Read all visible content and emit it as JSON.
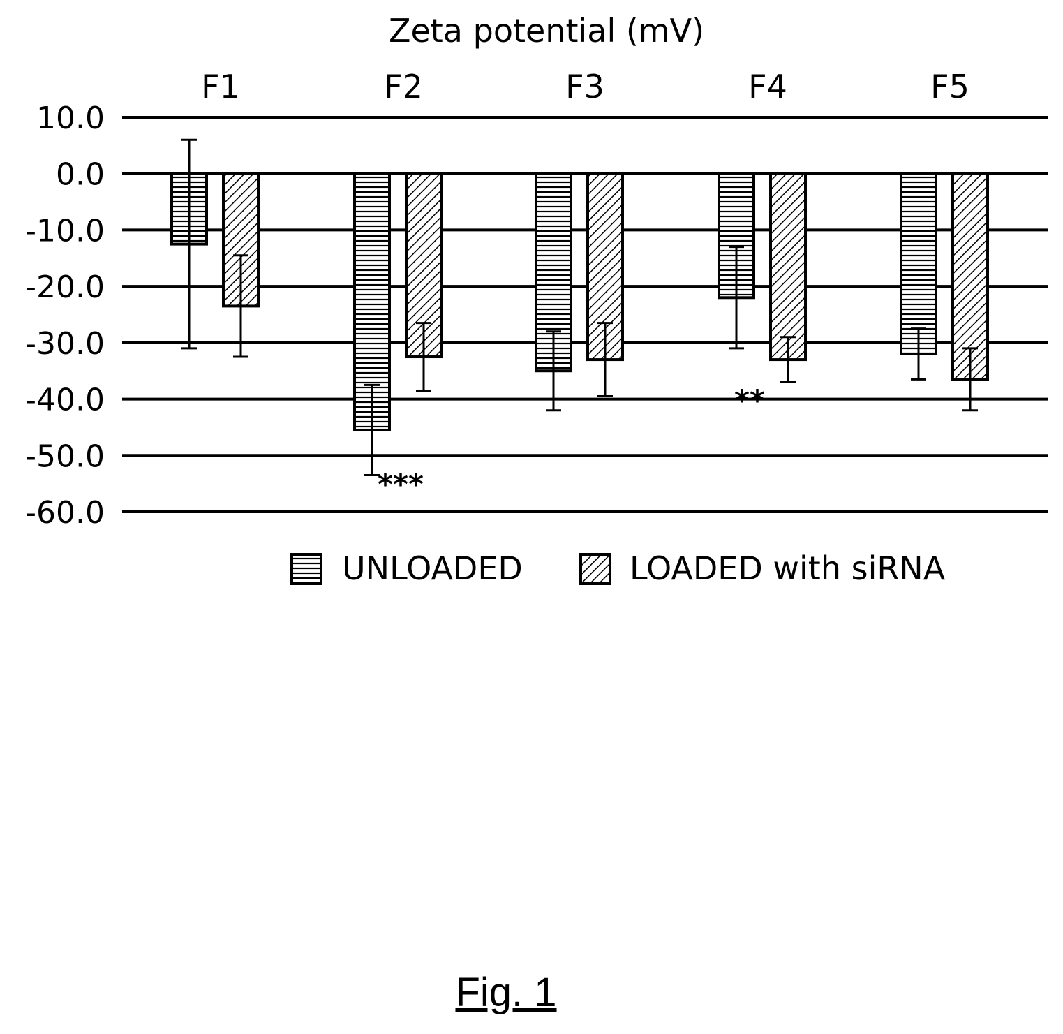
{
  "chart_data": {
    "type": "bar",
    "title": "Zeta potential (mV)",
    "xlabel": "",
    "ylabel": "",
    "categories": [
      "F1",
      "F2",
      "F3",
      "F4",
      "F5"
    ],
    "series": [
      {
        "name": "UNLOADED",
        "pattern": "horizontal-lines",
        "values": [
          -12.5,
          -45.5,
          -35.0,
          -22.0,
          -32.0
        ],
        "error": [
          18.5,
          8.0,
          7.0,
          9.0,
          4.5
        ]
      },
      {
        "name": "LOADED with siRNA",
        "pattern": "diagonal-lines",
        "values": [
          -23.5,
          -32.5,
          -33.0,
          -33.0,
          -36.5
        ],
        "error": [
          9.0,
          6.0,
          6.5,
          4.0,
          5.5
        ]
      }
    ],
    "ylim": [
      -60,
      10
    ],
    "yticks": [
      10,
      0,
      -10,
      -20,
      -30,
      -40,
      -50,
      -60
    ],
    "ytick_labels": [
      "10.0",
      "0.0",
      "-10.0",
      "-20.0",
      "-30.0",
      "-40.0",
      "-50.0",
      "-60.0"
    ],
    "category_axis_position": "top",
    "grid": true,
    "legend": "bottom",
    "annotations": [
      {
        "text": "***",
        "category": "F2"
      },
      {
        "text": "**",
        "category": "F4"
      }
    ],
    "colors": {
      "bar_fill": "#ffffff",
      "stroke": "#000000"
    }
  },
  "figure_caption": "Fig. 1"
}
